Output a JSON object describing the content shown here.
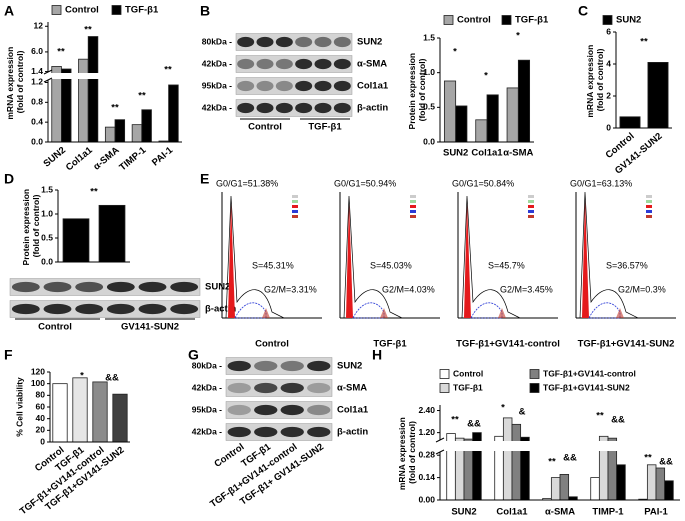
{
  "panels": [
    "A",
    "B",
    "C",
    "D",
    "E",
    "F",
    "G",
    "H"
  ],
  "chart_data": [
    {
      "type": "bar",
      "y_label": "mRNA expression (fold of control)",
      "categories": [
        "SUN2",
        "Col1a1",
        "α-SMA",
        "TIMP-1",
        "PAI-1"
      ],
      "series": [
        {
          "name": "Control",
          "color": "#a6a6a6",
          "values": [
            2.6,
            4.3,
            0.3,
            0.35,
            0.02
          ]
        },
        {
          "name": "TGF-β1",
          "color": "#000000",
          "values": [
            2.0,
            9.6,
            0.45,
            0.65,
            1.15
          ]
        }
      ],
      "y_segments": [
        {
          "ylim": [
            0,
            1.25
          ],
          "yticks": [
            {
              "value": 0,
              "label": "0.0"
            },
            0.4,
            0.8,
            1.2
          ]
        },
        {
          "ylim": [
            1.3,
            13
          ],
          "yticks": [
            1.4,
            {
              "value": 6,
              "label": "6.0"
            },
            12
          ]
        }
      ],
      "annotations": [
        "**",
        "**",
        "**",
        "**",
        "**"
      ],
      "legend": "top"
    },
    {
      "type": "bar",
      "y_label": "Protein expression (fold of control)",
      "categories": [
        "SUN2",
        "Col1a1",
        "α-SMA"
      ],
      "series": [
        {
          "name": "Control",
          "color": "#a6a6a6",
          "values": [
            0.88,
            0.32,
            0.78
          ]
        },
        {
          "name": "TGF-β1",
          "color": "#000000",
          "values": [
            0.52,
            0.68,
            1.18
          ]
        }
      ],
      "ylim": [
        0,
        1.5
      ],
      "yticks": [
        {
          "value": 0,
          "label": "0.0"
        },
        0.5,
        {
          "value": 1,
          "label": "1.0"
        },
        1.5
      ],
      "annotations": [
        "*",
        "*",
        "*"
      ],
      "legend": "top"
    },
    {
      "type": "bar",
      "y_label": "mRNA expression (fold of control)",
      "categories": [
        "Control",
        "GV141-SUN2"
      ],
      "series": [
        {
          "name": "SUN2",
          "color": "#000000",
          "values": [
            0.7,
            4.1
          ]
        }
      ],
      "ylim": [
        0,
        6
      ],
      "yticks": [
        0,
        2,
        4,
        6
      ],
      "annotations": [
        "**"
      ],
      "legend": "top"
    },
    {
      "type": "bar",
      "y_label": "Protein expression (fold of control)",
      "categories": [
        null,
        null
      ],
      "values": [
        0.9,
        1.18
      ],
      "color": "#000000",
      "ylim": [
        0,
        1.5
      ],
      "yticks": [
        {
          "value": 0,
          "label": "0.0"
        },
        0.5,
        {
          "value": 1,
          "label": "1.0"
        },
        1.5
      ],
      "annotations": [
        "**"
      ]
    },
    {
      "type": "bar",
      "y_label": "% Cell viability",
      "categories": [
        "Control",
        "TGF-β1",
        "TGF-β1+GV141-control",
        "TGF-β1+GV141-SUN2"
      ],
      "values": [
        100,
        110,
        103,
        82
      ],
      "colors": [
        "#ffffff",
        "#e6e6e6",
        "#8c8c8c",
        "#404040"
      ],
      "ylim": [
        0,
        120
      ],
      "yticks": [
        0,
        20,
        40,
        60,
        80,
        100,
        120
      ],
      "annotations": [
        "*",
        "&&"
      ]
    },
    {
      "type": "bar",
      "y_label": "mRNA expression (fold of control)",
      "categories": [
        "SUN2",
        "Col1a1",
        "α-SMA",
        "TIMP-1",
        "PAI-1"
      ],
      "series": [
        {
          "name": "Control",
          "color": "#ffffff",
          "values": [
            1.15,
            1.0,
            0.01,
            0.14,
            0.005
          ]
        },
        {
          "name": "TGF-β1",
          "color": "#d9d9d9",
          "values": [
            0.9,
            2.0,
            0.14,
            1.0,
            0.22
          ]
        },
        {
          "name": "TGF-β1+GV141-control",
          "color": "#808080",
          "values": [
            0.85,
            1.65,
            0.16,
            0.9,
            0.2
          ]
        },
        {
          "name": "TGF-β1+GV141-SUN2",
          "color": "#000000",
          "values": [
            1.2,
            0.95,
            0.02,
            0.22,
            0.12
          ]
        }
      ],
      "y_segments": [
        {
          "ylim": [
            0,
            0.3
          ],
          "yticks": [
            {
              "value": 0,
              "label": "0.00"
            },
            0.14,
            0.28
          ]
        },
        {
          "ylim": [
            0.8,
            2.7
          ],
          "yticks": [
            {
              "value": 1.2,
              "label": "1.20"
            },
            {
              "value": 2.4,
              "label": "2.40"
            }
          ]
        }
      ],
      "annotations": [
        "**",
        "&&",
        "*",
        "&",
        "**",
        "&&",
        "**",
        "&&",
        "**",
        "&&"
      ],
      "legend": "top"
    }
  ],
  "blots": [
    {
      "ladder": [
        "80kDa -",
        "42kDa -",
        "95kDa -",
        "42kDa -"
      ],
      "bands": [
        "SUN2",
        "α-SMA",
        "Col1a1",
        "β-actin"
      ],
      "groups": [
        "Control",
        "TGF-β1"
      ]
    },
    {
      "bands": [
        "SUN2",
        "β-actin"
      ],
      "groups": [
        "Control",
        "GV141-SUN2"
      ]
    },
    {
      "ladder": [
        "80kDa -",
        "42kDa -",
        "95kDa -",
        "42kDa -"
      ],
      "bands": [
        "SUN2",
        "α-SMA",
        "Col1a1",
        "β-actin"
      ],
      "lanes": [
        "Control",
        "TGF-β1",
        "TGF-β1+GV141-control",
        "TGF-β1+ GV141-SUN2"
      ]
    }
  ],
  "flow": [
    {
      "g0g1": "G0/G1=51.38%",
      "s": "S=45.31%",
      "g2m": "G2/M=3.31%",
      "label": "Control"
    },
    {
      "g0g1": "G0/G1=50.94%",
      "s": "S=45.03%",
      "g2m": "G2/M=4.03%",
      "label": "TGF-β1"
    },
    {
      "g0g1": "G0/G1=50.84%",
      "s": "S=45.7%",
      "g2m": "G2/M=3.45%",
      "label": "TGF-β1+GV141-control"
    },
    {
      "g0g1": "G0/G1=63.13%",
      "s": "S=36.57%",
      "g2m": "G2/M=0.3%",
      "label": "TGF-β1+GV141-SUN2"
    }
  ]
}
